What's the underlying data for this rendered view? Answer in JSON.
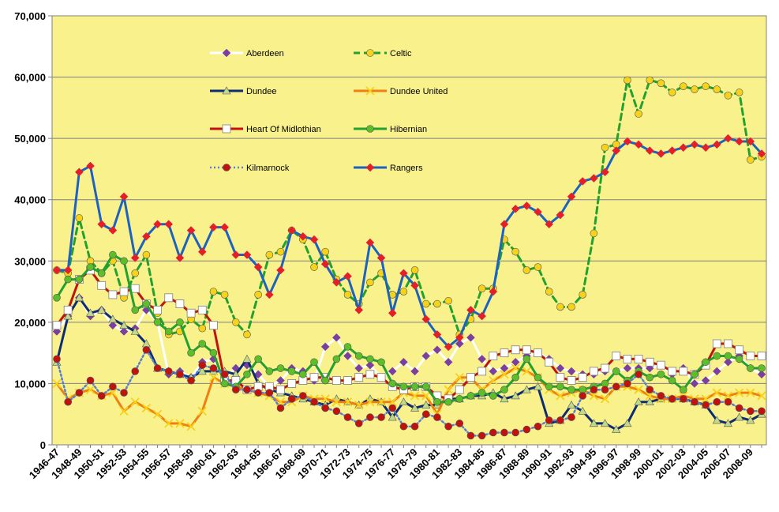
{
  "chart_data": {
    "type": "line",
    "title": "",
    "xlabel": "",
    "ylabel": "",
    "ylim": [
      0,
      70000
    ],
    "yticks": [
      0,
      10000,
      20000,
      30000,
      40000,
      50000,
      60000,
      70000
    ],
    "ytick_labels": [
      "0",
      "10,000",
      "20,000",
      "30,000",
      "40,000",
      "50,000",
      "60,000",
      "70,000"
    ],
    "grid": true,
    "plot_background": "#F9F18C",
    "legend_position": "inside-top-left",
    "x": [
      "1946-47",
      "1947-48",
      "1948-49",
      "1949-50",
      "1950-51",
      "1951-52",
      "1952-53",
      "1953-54",
      "1954-55",
      "1955-56",
      "1956-57",
      "1957-58",
      "1958-59",
      "1959-60",
      "1960-61",
      "1961-62",
      "1962-63",
      "1963-64",
      "1964-65",
      "1965-66",
      "1966-67",
      "1967-68",
      "1968-69",
      "1969-70",
      "1970-71",
      "1971-72",
      "1972-73",
      "1973-74",
      "1974-75",
      "1975-76",
      "1976-77",
      "1977-78",
      "1978-79",
      "1979-80",
      "1980-81",
      "1981-82",
      "1982-83",
      "1983-84",
      "1984-85",
      "1985-86",
      "1986-87",
      "1987-88",
      "1988-89",
      "1989-90",
      "1990-91",
      "1991-92",
      "1992-93",
      "1993-94",
      "1994-95",
      "1995-96",
      "1996-97",
      "1997-98",
      "1998-99",
      "1999-00",
      "2000-01",
      "2001-02",
      "2002-03",
      "2003-04",
      "2004-05",
      "2005-06",
      "2006-07",
      "2007-08",
      "2008-09",
      "2009-10"
    ],
    "xtick_labels": [
      "1946-47",
      "1948-49",
      "1950-51",
      "1952-53",
      "1954-55",
      "1956-57",
      "1958-59",
      "1960-61",
      "1962-63",
      "1964-65",
      "1966-67",
      "1968-69",
      "1970-71",
      "1972-73",
      "1974-75",
      "1976-77",
      "1978-79",
      "1980-81",
      "1982-83",
      "1984-85",
      "1986-87",
      "1988-89",
      "1990-91",
      "1992-93",
      "1994-95",
      "1996-97",
      "1998-99",
      "2000-01",
      "2002-03",
      "2004-05",
      "2006-07",
      "2008-09"
    ],
    "series": [
      {
        "name": "Aberdeen",
        "color": "#FFFFFF",
        "dash": "solid",
        "marker": "diamond",
        "marker_fill": "#7B3FA0",
        "values": [
          18500,
          21000,
          24000,
          21000,
          22000,
          19500,
          18500,
          19000,
          22000,
          20000,
          11500,
          12000,
          11000,
          13500,
          14000,
          11000,
          12500,
          13000,
          11500,
          9500,
          10500,
          12500,
          12000,
          10500,
          16000,
          17500,
          14500,
          12500,
          13000,
          11000,
          12000,
          13500,
          12000,
          14500,
          15500,
          13500,
          16500,
          17500,
          14000,
          12000,
          12500,
          13500,
          14500,
          15000,
          14000,
          12500,
          12000,
          11500,
          11500,
          12000,
          12000,
          12500,
          12500,
          12500,
          13000,
          11500,
          12500,
          10000,
          10500,
          12000,
          13500,
          14500,
          12500,
          11500
        ]
      },
      {
        "name": "Celtic",
        "color": "#22A12F",
        "dash": "dashed",
        "marker": "circle",
        "marker_fill": "#F7D21A",
        "values": [
          28500,
          28000,
          37000,
          30000,
          28000,
          30000,
          24000,
          28000,
          31000,
          21500,
          18000,
          18500,
          20500,
          19000,
          25000,
          24500,
          20000,
          18000,
          24500,
          31000,
          31500,
          35000,
          33500,
          29000,
          31500,
          27000,
          24500,
          23000,
          26500,
          28000,
          24500,
          25000,
          28500,
          23000,
          23000,
          23500,
          18000,
          20500,
          25500,
          25500,
          33500,
          31500,
          28500,
          29000,
          25000,
          22500,
          22500,
          24500,
          34500,
          48500,
          49000,
          59500,
          54000,
          59500,
          59000,
          57500,
          58500,
          58000,
          58500,
          58000,
          57000,
          57500,
          46500,
          47000
        ]
      },
      {
        "name": "Dundee",
        "color": "#0D2C71",
        "dash": "solid",
        "marker": "triangle",
        "marker_fill": "#C2D98A",
        "values": [
          13500,
          21000,
          24000,
          21500,
          22000,
          20500,
          19500,
          18500,
          16500,
          12500,
          12000,
          11500,
          11000,
          12000,
          12000,
          12000,
          11500,
          14000,
          10000,
          9000,
          8500,
          8000,
          7500,
          7000,
          6500,
          7500,
          7000,
          6500,
          7500,
          7000,
          4500,
          7000,
          6000,
          6500,
          6500,
          7500,
          7500,
          8000,
          8000,
          8500,
          7500,
          8000,
          9000,
          9500,
          3500,
          4000,
          6500,
          5500,
          3500,
          3500,
          2500,
          3500,
          7000,
          7000,
          7500,
          7500,
          7500,
          7000,
          6500,
          4000,
          3500,
          4500,
          4000,
          5000
        ]
      },
      {
        "name": "Dundee United",
        "color": "#EF7F11",
        "dash": "solid",
        "marker": "x",
        "marker_fill": "#F7D21A",
        "values": [
          10000,
          7500,
          8500,
          9000,
          8000,
          8500,
          5500,
          7000,
          6000,
          5000,
          3500,
          3500,
          3000,
          5500,
          11000,
          10000,
          9500,
          9000,
          8500,
          8000,
          7000,
          7000,
          8000,
          7500,
          7500,
          7000,
          7000,
          6500,
          7000,
          7000,
          7000,
          8500,
          8000,
          8000,
          5000,
          9000,
          11000,
          11000,
          9000,
          10500,
          11500,
          12500,
          12000,
          11000,
          9000,
          8000,
          8500,
          9000,
          8000,
          7500,
          9500,
          9500,
          9000,
          8000,
          7500,
          7500,
          8000,
          7500,
          7500,
          8500,
          8000,
          8500,
          8500,
          8000
        ]
      },
      {
        "name": "Heart Of Midlothian",
        "color": "#C0130F",
        "dash": "solid",
        "marker": "square",
        "marker_fill": "#FFFFFF",
        "values": [
          19500,
          22000,
          27000,
          28500,
          26000,
          24500,
          25000,
          25500,
          23000,
          22000,
          24000,
          23000,
          21500,
          22000,
          19500,
          10500,
          10500,
          9000,
          9500,
          9500,
          9000,
          10000,
          10500,
          11000,
          11000,
          10500,
          10500,
          11000,
          11500,
          11000,
          9500,
          9000,
          9500,
          9500,
          8000,
          7500,
          9000,
          11000,
          12000,
          14500,
          15000,
          15500,
          15500,
          15000,
          13500,
          11000,
          10500,
          11000,
          12000,
          12500,
          14500,
          14000,
          14000,
          13500,
          13000,
          12000,
          12000,
          11500,
          13000,
          16500,
          16500,
          15500,
          14500,
          14500
        ]
      },
      {
        "name": "Hibernian",
        "color": "#22A12F",
        "dash": "solid",
        "marker": "circle",
        "marker_fill": "#5CBF2A",
        "values": [
          24000,
          27000,
          27000,
          29000,
          28000,
          31000,
          30000,
          22000,
          23000,
          20000,
          18500,
          20000,
          15000,
          16500,
          15000,
          10000,
          9500,
          11500,
          14000,
          12000,
          12500,
          12000,
          11500,
          13500,
          10500,
          14000,
          16000,
          14500,
          14000,
          13500,
          10000,
          9500,
          9500,
          9500,
          7000,
          7000,
          7500,
          8000,
          8500,
          8000,
          9000,
          11000,
          14000,
          11000,
          9500,
          9500,
          9000,
          9000,
          9500,
          10000,
          12000,
          10500,
          12000,
          11000,
          11500,
          10500,
          9000,
          11500,
          13500,
          14500,
          14500,
          14000,
          12500,
          12500
        ]
      },
      {
        "name": "Kilmarnock",
        "color": "#5B7FD0",
        "dash": "dotted",
        "marker": "circle",
        "marker_fill": "#C0130F",
        "values": [
          14000,
          7000,
          8500,
          10500,
          8000,
          9500,
          8500,
          12000,
          15500,
          12500,
          12000,
          11500,
          10500,
          13000,
          12500,
          11500,
          9000,
          9000,
          8500,
          8500,
          6000,
          7500,
          8000,
          7000,
          6000,
          5500,
          4500,
          3500,
          4500,
          4500,
          6000,
          3000,
          3000,
          5000,
          4500,
          3000,
          3500,
          1500,
          1500,
          2000,
          2000,
          2000,
          2500,
          3000,
          4000,
          4000,
          4500,
          8000,
          9000,
          9000,
          9500,
          10000,
          11500,
          9000,
          8000,
          7500,
          7500,
          7000,
          6500,
          7000,
          7000,
          6000,
          5500,
          5500
        ]
      },
      {
        "name": "Rangers",
        "color": "#1C62BE",
        "dash": "solid",
        "marker": "diamond",
        "marker_fill": "#E3202A",
        "values": [
          28500,
          28500,
          44500,
          45500,
          36000,
          35000,
          40500,
          30500,
          34000,
          36000,
          36000,
          30500,
          35000,
          31500,
          35500,
          35500,
          31000,
          31000,
          29000,
          24500,
          28500,
          35000,
          34000,
          33500,
          29500,
          26500,
          27500,
          22000,
          33000,
          30500,
          21500,
          28000,
          26000,
          20500,
          18000,
          16000,
          17500,
          22000,
          21000,
          25000,
          36000,
          38500,
          39000,
          38000,
          36000,
          37500,
          40500,
          43000,
          43500,
          44500,
          48000,
          49500,
          49000,
          48000,
          47500,
          48000,
          48500,
          49000,
          48500,
          49000,
          50000,
          49500,
          49500,
          47500
        ]
      }
    ]
  }
}
